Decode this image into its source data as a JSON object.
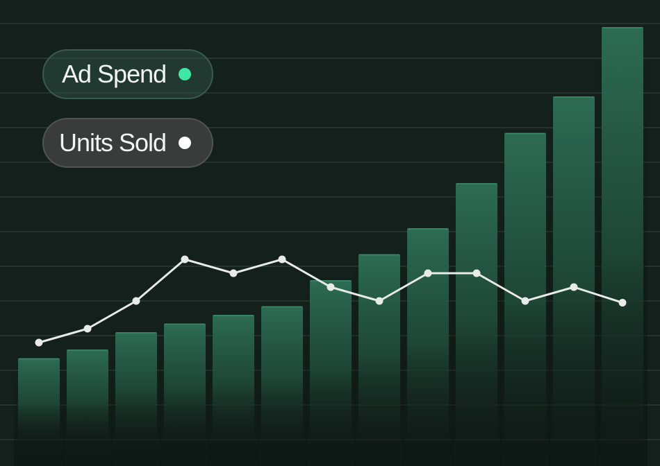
{
  "legend": {
    "ad_spend_label": "Ad Spend",
    "units_sold_label": "Units Sold"
  },
  "chart_data": {
    "type": "bar",
    "grid": true,
    "legend_position": "top-left",
    "xlabel": "",
    "ylabel": "",
    "ylim": [
      0,
      12
    ],
    "categories": [
      "",
      "",
      "",
      "",
      "",
      "",
      "",
      "",
      "",
      "",
      "",
      "",
      ""
    ],
    "series": [
      {
        "name": "Ad Spend",
        "type": "bar",
        "color": "#2c6b52",
        "values": [
          2.35,
          2.6,
          3.1,
          3.35,
          3.6,
          3.85,
          4.6,
          5.35,
          6.1,
          7.4,
          8.85,
          9.9,
          11.9
        ]
      },
      {
        "name": "Units Sold",
        "type": "line",
        "color": "#e8ebe9",
        "values": [
          2.8,
          3.2,
          4.0,
          5.2,
          4.8,
          5.2,
          4.4,
          4.0,
          4.8,
          4.8,
          4.0,
          4.4,
          3.95
        ]
      }
    ]
  },
  "colors": {
    "background": "#13201b",
    "bar": "#2c6b52",
    "line": "#e8ebe9",
    "ad_spend_dot": "#3ee8a3",
    "units_sold_dot": "#ffffff",
    "grid": "#2a3a34"
  }
}
